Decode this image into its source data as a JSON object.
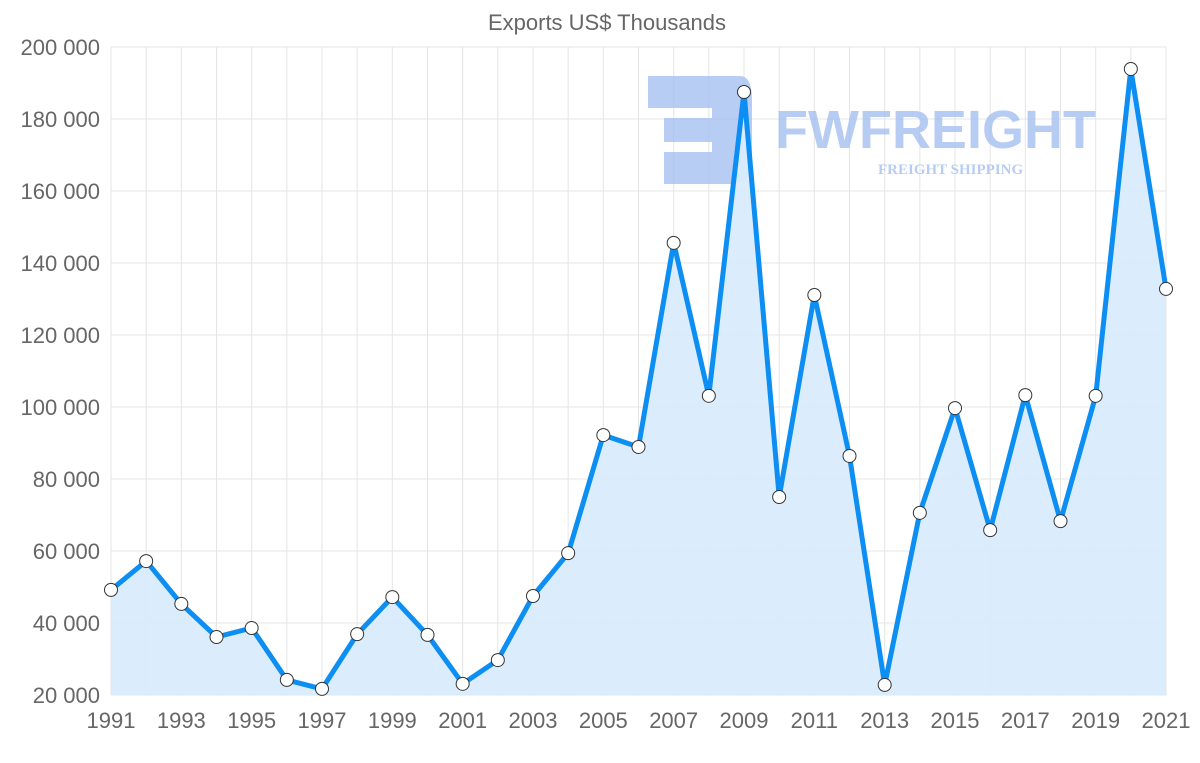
{
  "chart_data": {
    "type": "area",
    "title": "Exports US$ Thousands",
    "xlabel": "",
    "ylabel": "",
    "x": [
      1991,
      1992,
      1993,
      1994,
      1995,
      1996,
      1997,
      1998,
      1999,
      2000,
      2001,
      2002,
      2003,
      2004,
      2005,
      2006,
      2007,
      2008,
      2009,
      2010,
      2011,
      2012,
      2013,
      2014,
      2015,
      2016,
      2017,
      2018,
      2019,
      2020,
      2021
    ],
    "series": [
      {
        "name": "Exports US$ Thousands",
        "values": [
          49200,
          57200,
          45300,
          36100,
          38600,
          24200,
          21700,
          36900,
          47200,
          36700,
          23100,
          29700,
          47500,
          59400,
          92200,
          88900,
          145600,
          103100,
          187500,
          75000,
          131100,
          86400,
          22800,
          70600,
          99700,
          65800,
          103300,
          68300,
          103100,
          193900,
          132800
        ]
      }
    ],
    "ylim": [
      20000,
      200000
    ],
    "xlim": [
      1991,
      2021
    ],
    "y_ticks": [
      "20 000",
      "40 000",
      "60 000",
      "80 000",
      "100 000",
      "120 000",
      "140 000",
      "160 000",
      "180 000",
      "200 000"
    ],
    "x_ticks": [
      "1991",
      "1993",
      "1995",
      "1997",
      "1999",
      "2001",
      "2003",
      "2005",
      "2007",
      "2009",
      "2011",
      "2013",
      "2015",
      "2017",
      "2019",
      "2021"
    ],
    "grid": true,
    "legend": "none",
    "colors": {
      "line": "#0d8ef2",
      "fill": "#d9ecfd",
      "marker_fill": "#ffffff",
      "watermark": "#9fbcf0"
    }
  },
  "watermark": {
    "brand": "FWFREIGHT",
    "tagline": "FREIGHT SHIPPING"
  }
}
